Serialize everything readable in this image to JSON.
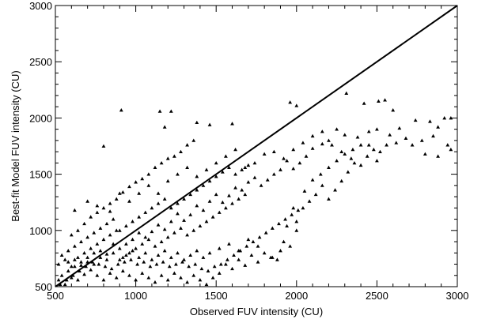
{
  "chart_data": {
    "type": "scatter",
    "title": "",
    "xlabel": "Observed FUV intensity (CU)",
    "ylabel": "Best-fit Model FUV intensity (CU)",
    "xlim": [
      500,
      3000
    ],
    "ylim": [
      500,
      3000
    ],
    "xticks": [
      500,
      1000,
      1500,
      2000,
      2500,
      3000
    ],
    "yticks": [
      500,
      1000,
      1500,
      2000,
      2500,
      3000
    ],
    "xtick_labels": [
      "500",
      "1000",
      "1500",
      "2000",
      "2500",
      "3000"
    ],
    "ytick_labels": [
      "500",
      "1000",
      "1500",
      "2000",
      "2500",
      "3000"
    ],
    "grid": false,
    "marker": "triangle",
    "reference_line": {
      "x": [
        500,
        3000
      ],
      "y": [
        500,
        3000
      ]
    },
    "series": [
      {
        "points": [
          [
            910,
            2070
          ],
          [
            1150,
            2060
          ],
          [
            1220,
            2060
          ],
          [
            1380,
            1960
          ],
          [
            1460,
            1940
          ],
          [
            800,
            1750
          ],
          [
            1180,
            1920
          ],
          [
            1600,
            1950
          ],
          [
            1960,
            2140
          ],
          [
            2000,
            2110
          ],
          [
            2310,
            2220
          ],
          [
            2420,
            2130
          ],
          [
            2510,
            2150
          ],
          [
            2550,
            2160
          ],
          [
            2600,
            2070
          ],
          [
            2740,
            1980
          ],
          [
            2830,
            1970
          ],
          [
            2920,
            2000
          ],
          [
            2960,
            2000
          ],
          [
            2880,
            1920
          ],
          [
            2880,
            1660
          ],
          [
            2800,
            1680
          ],
          [
            2960,
            1720
          ],
          [
            2640,
            1910
          ],
          [
            2580,
            1850
          ],
          [
            2500,
            1900
          ],
          [
            2450,
            1880
          ],
          [
            2380,
            1830
          ],
          [
            2300,
            1850
          ],
          [
            2250,
            1900
          ],
          [
            2200,
            1800
          ],
          [
            2160,
            1770
          ],
          [
            2100,
            1730
          ],
          [
            2060,
            1660
          ],
          [
            2020,
            1600
          ],
          [
            1980,
            1550
          ],
          [
            1940,
            1620
          ],
          [
            1900,
            1540
          ],
          [
            1860,
            1500
          ],
          [
            1820,
            1450
          ],
          [
            1780,
            1400
          ],
          [
            1740,
            1470
          ],
          [
            1700,
            1430
          ],
          [
            1660,
            1360
          ],
          [
            1620,
            1380
          ],
          [
            1580,
            1310
          ],
          [
            1540,
            1250
          ],
          [
            1500,
            1320
          ],
          [
            1460,
            1260
          ],
          [
            1420,
            1180
          ],
          [
            1380,
            1220
          ],
          [
            1340,
            1140
          ],
          [
            1300,
            1090
          ],
          [
            1260,
            1150
          ],
          [
            1220,
            1080
          ],
          [
            1180,
            1010
          ],
          [
            1140,
            1050
          ],
          [
            1100,
            990
          ],
          [
            1060,
            940
          ],
          [
            1020,
            980
          ],
          [
            980,
            920
          ],
          [
            940,
            880
          ],
          [
            900,
            840
          ],
          [
            860,
            880
          ],
          [
            820,
            790
          ],
          [
            780,
            760
          ],
          [
            740,
            800
          ],
          [
            700,
            720
          ],
          [
            660,
            690
          ],
          [
            620,
            740
          ],
          [
            580,
            640
          ],
          [
            540,
            600
          ],
          [
            520,
            560
          ],
          [
            560,
            520
          ],
          [
            600,
            580
          ],
          [
            640,
            560
          ],
          [
            680,
            610
          ],
          [
            720,
            650
          ],
          [
            760,
            600
          ],
          [
            800,
            560
          ],
          [
            840,
            620
          ],
          [
            880,
            580
          ],
          [
            920,
            640
          ],
          [
            960,
            600
          ],
          [
            1000,
            560
          ],
          [
            1040,
            620
          ],
          [
            1080,
            580
          ],
          [
            1120,
            540
          ],
          [
            1160,
            600
          ],
          [
            1200,
            560
          ],
          [
            1240,
            620
          ],
          [
            1280,
            580
          ],
          [
            1320,
            540
          ],
          [
            1360,
            600
          ],
          [
            1400,
            560
          ],
          [
            1440,
            520
          ],
          [
            1480,
            580
          ],
          [
            1520,
            620
          ],
          [
            1560,
            700
          ],
          [
            1600,
            660
          ],
          [
            1640,
            740
          ],
          [
            1680,
            690
          ],
          [
            1720,
            780
          ],
          [
            1760,
            720
          ],
          [
            1800,
            800
          ],
          [
            1840,
            760
          ],
          [
            1880,
            740
          ],
          [
            1920,
            900
          ],
          [
            1960,
            860
          ],
          [
            2000,
            1080
          ],
          [
            2040,
            1200
          ],
          [
            2080,
            1260
          ],
          [
            2120,
            1320
          ],
          [
            2160,
            1400
          ],
          [
            2200,
            1280
          ],
          [
            2240,
            1360
          ],
          [
            2280,
            1440
          ],
          [
            2320,
            1520
          ],
          [
            2360,
            1600
          ],
          [
            2400,
            1580
          ],
          [
            2440,
            1660
          ],
          [
            2480,
            1720
          ],
          [
            2520,
            1700
          ],
          [
            2560,
            1760
          ],
          [
            2620,
            1780
          ],
          [
            2680,
            1820
          ],
          [
            2720,
            1760
          ],
          [
            2780,
            1800
          ],
          [
            2850,
            1840
          ],
          [
            2940,
            1760
          ],
          [
            600,
            960
          ],
          [
            640,
            1000
          ],
          [
            680,
            1060
          ],
          [
            720,
            1120
          ],
          [
            760,
            1160
          ],
          [
            800,
            1200
          ],
          [
            840,
            1240
          ],
          [
            880,
            1280
          ],
          [
            920,
            1340
          ],
          [
            960,
            1390
          ],
          [
            1000,
            1430
          ],
          [
            1040,
            1460
          ],
          [
            1080,
            1500
          ],
          [
            1120,
            1560
          ],
          [
            1160,
            1600
          ],
          [
            1200,
            1640
          ],
          [
            1240,
            1660
          ],
          [
            1280,
            1700
          ],
          [
            1320,
            1760
          ],
          [
            1360,
            1800
          ],
          [
            620,
            1180
          ],
          [
            700,
            1260
          ],
          [
            760,
            1220
          ],
          [
            840,
            1170
          ],
          [
            900,
            1330
          ],
          [
            960,
            1260
          ],
          [
            1020,
            1330
          ],
          [
            1080,
            1400
          ],
          [
            1140,
            1330
          ],
          [
            1200,
            1440
          ],
          [
            1260,
            1500
          ],
          [
            1320,
            1560
          ],
          [
            1380,
            1480
          ],
          [
            1440,
            1540
          ],
          [
            1500,
            1600
          ],
          [
            1560,
            1660
          ],
          [
            1620,
            1720
          ],
          [
            1680,
            1560
          ],
          [
            1740,
            1600
          ],
          [
            1800,
            1680
          ],
          [
            1860,
            1700
          ],
          [
            1920,
            1640
          ],
          [
            1980,
            1720
          ],
          [
            2040,
            1780
          ],
          [
            2100,
            1840
          ],
          [
            2160,
            1880
          ],
          [
            2220,
            1760
          ],
          [
            2280,
            1700
          ],
          [
            2340,
            1640
          ],
          [
            2400,
            1760
          ],
          [
            540,
            780
          ],
          [
            580,
            820
          ],
          [
            620,
            860
          ],
          [
            660,
            900
          ],
          [
            700,
            940
          ],
          [
            740,
            980
          ],
          [
            780,
            1020
          ],
          [
            820,
            1060
          ],
          [
            860,
            1100
          ],
          [
            900,
            1000
          ],
          [
            940,
            1040
          ],
          [
            980,
            1080
          ],
          [
            1020,
            1120
          ],
          [
            1060,
            1160
          ],
          [
            1100,
            1200
          ],
          [
            1140,
            1240
          ],
          [
            1180,
            1280
          ],
          [
            1220,
            1200
          ],
          [
            1260,
            1240
          ],
          [
            1300,
            1280
          ],
          [
            1340,
            1320
          ],
          [
            1380,
            1360
          ],
          [
            1420,
            1400
          ],
          [
            1460,
            1440
          ],
          [
            1500,
            1480
          ],
          [
            1540,
            1520
          ],
          [
            1580,
            1560
          ],
          [
            1620,
            1500
          ],
          [
            1660,
            1540
          ],
          [
            1700,
            1580
          ],
          [
            520,
            700
          ],
          [
            560,
            740
          ],
          [
            600,
            680
          ],
          [
            640,
            760
          ],
          [
            680,
            800
          ],
          [
            720,
            840
          ],
          [
            760,
            880
          ],
          [
            800,
            920
          ],
          [
            840,
            960
          ],
          [
            880,
            1000
          ],
          [
            920,
            760
          ],
          [
            960,
            800
          ],
          [
            1000,
            840
          ],
          [
            1040,
            880
          ],
          [
            1080,
            920
          ],
          [
            1120,
            860
          ],
          [
            1160,
            900
          ],
          [
            1200,
            940
          ],
          [
            1240,
            980
          ],
          [
            1280,
            1020
          ],
          [
            1320,
            960
          ],
          [
            1360,
            1000
          ],
          [
            1400,
            1040
          ],
          [
            1440,
            1080
          ],
          [
            1480,
            1120
          ],
          [
            1520,
            1160
          ],
          [
            1560,
            1200
          ],
          [
            1600,
            1240
          ],
          [
            1640,
            1280
          ],
          [
            1680,
            1320
          ],
          [
            530,
            520
          ],
          [
            570,
            560
          ],
          [
            610,
            600
          ],
          [
            650,
            640
          ],
          [
            690,
            680
          ],
          [
            730,
            720
          ],
          [
            770,
            700
          ],
          [
            810,
            680
          ],
          [
            850,
            660
          ],
          [
            890,
            700
          ],
          [
            930,
            720
          ],
          [
            970,
            740
          ],
          [
            1010,
            700
          ],
          [
            1050,
            720
          ],
          [
            1090,
            680
          ],
          [
            1130,
            700
          ],
          [
            1170,
            720
          ],
          [
            1210,
            680
          ],
          [
            1250,
            700
          ],
          [
            1290,
            720
          ],
          [
            1330,
            680
          ],
          [
            1370,
            700
          ],
          [
            1410,
            660
          ],
          [
            1450,
            640
          ],
          [
            1490,
            680
          ],
          [
            1530,
            700
          ],
          [
            1570,
            740
          ],
          [
            1610,
            780
          ],
          [
            1650,
            820
          ],
          [
            1690,
            860
          ],
          [
            1730,
            900
          ],
          [
            1770,
            940
          ],
          [
            1810,
            980
          ],
          [
            1850,
            1020
          ],
          [
            1890,
            1060
          ],
          [
            1930,
            1100
          ],
          [
            1970,
            1140
          ],
          [
            2010,
            1180
          ],
          [
            1980,
            1200
          ],
          [
            1940,
            1040
          ],
          [
            1850,
            760
          ],
          [
            1900,
            820
          ],
          [
            1760,
            860
          ],
          [
            1700,
            920
          ],
          [
            1640,
            820
          ],
          [
            1580,
            880
          ],
          [
            1520,
            840
          ],
          [
            1460,
            800
          ],
          [
            1420,
            760
          ],
          [
            1380,
            820
          ],
          [
            1340,
            780
          ],
          [
            1300,
            740
          ],
          [
            1260,
            800
          ],
          [
            1220,
            760
          ],
          [
            1180,
            820
          ],
          [
            1140,
            780
          ],
          [
            1100,
            740
          ],
          [
            1060,
            800
          ],
          [
            1020,
            760
          ],
          [
            980,
            820
          ],
          [
            940,
            780
          ],
          [
            900,
            740
          ],
          [
            860,
            800
          ],
          [
            820,
            740
          ],
          [
            780,
            820
          ],
          [
            740,
            700
          ],
          [
            700,
            760
          ],
          [
            660,
            720
          ],
          [
            620,
            680
          ],
          [
            580,
            720
          ],
          [
            2000,
            1000
          ],
          [
            2050,
            1350
          ],
          [
            2100,
            1450
          ],
          [
            2150,
            1500
          ],
          [
            2200,
            1560
          ],
          [
            2250,
            1620
          ],
          [
            2300,
            1680
          ],
          [
            2350,
            1720
          ],
          [
            2450,
            1760
          ],
          [
            2500,
            1620
          ]
        ]
      }
    ]
  }
}
